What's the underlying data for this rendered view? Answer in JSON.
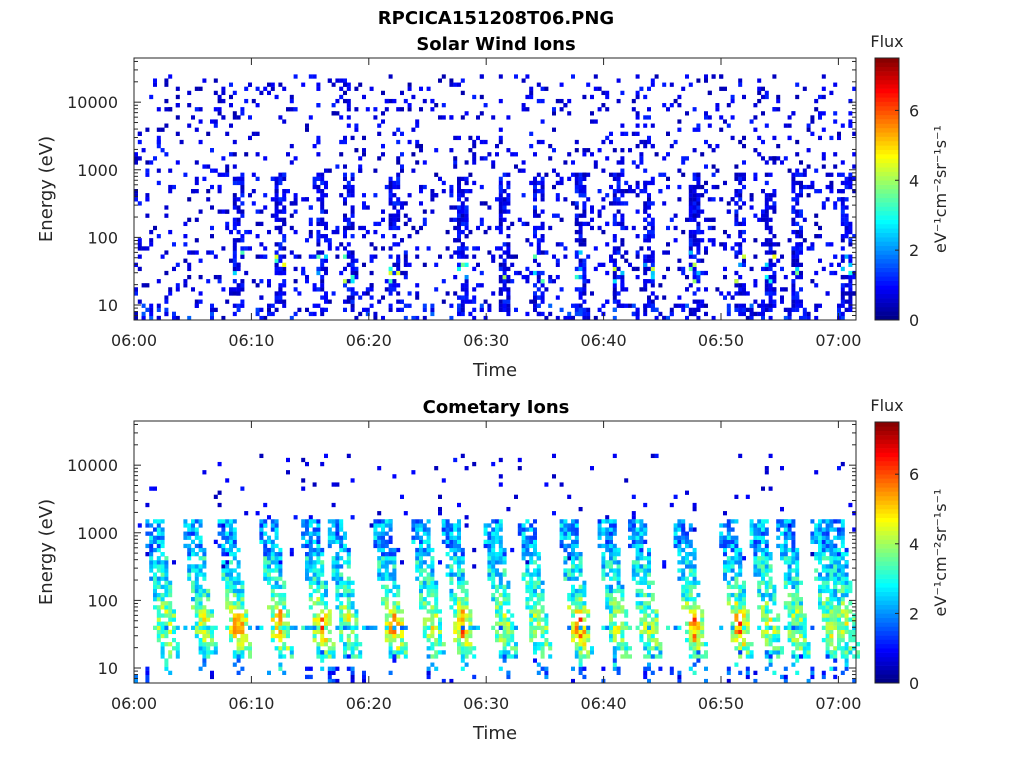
{
  "figure": {
    "title": "RPCICA151208T06.PNG"
  },
  "colormap": {
    "name": "jet",
    "stops": [
      "#00008f",
      "#0000ff",
      "#00ffff",
      "#ffff00",
      "#ff0000",
      "#800000"
    ]
  },
  "chart_data": [
    {
      "type": "heatmap",
      "title": "Solar Wind Ions",
      "xlabel": "Time",
      "ylabel": "Energy (eV)",
      "x_ticks": [
        "06:00",
        "06:10",
        "06:20",
        "06:30",
        "06:40",
        "06:50",
        "07:00"
      ],
      "x_range_minutes": [
        0,
        61.5
      ],
      "y_scale": "log",
      "y_ticks": [
        "10",
        "100",
        "1000",
        "10000"
      ],
      "y_range": [
        6,
        45000
      ],
      "colorbar": {
        "label": "Flux",
        "unit_label": "eV⁻¹cm⁻²sr⁻¹s⁻¹",
        "ticks": [
          "0",
          "2",
          "4",
          "6"
        ],
        "range": [
          0,
          7.5
        ]
      },
      "events_minutes": [
        8.8,
        12.2,
        15.7,
        18.1,
        22.0,
        27.8,
        31.4,
        34.3,
        37.8,
        41.0,
        43.7,
        47.6,
        51.5,
        54.0,
        56.4,
        60.5
      ],
      "description_level": "sparse low-flux scatter (0-2) across 6 eV - 30 keV with dark-blue vertical streaks at events"
    },
    {
      "type": "heatmap",
      "title": "Cometary Ions",
      "xlabel": "Time",
      "ylabel": "Energy (eV)",
      "x_ticks": [
        "06:00",
        "06:10",
        "06:20",
        "06:30",
        "06:40",
        "06:50",
        "07:00"
      ],
      "x_range_minutes": [
        0,
        61.5
      ],
      "y_scale": "log",
      "y_ticks": [
        "10",
        "100",
        "1000",
        "10000"
      ],
      "y_range": [
        6,
        45000
      ],
      "colorbar": {
        "label": "Flux",
        "unit_label": "eV⁻¹cm⁻²sr⁻¹s⁻¹",
        "ticks": [
          "0",
          "2",
          "4",
          "6"
        ],
        "range": [
          0,
          7.5
        ]
      },
      "events_minutes": [
        2.6,
        5.9,
        8.8,
        12.2,
        15.7,
        18.1,
        22.0,
        25.1,
        27.8,
        31.4,
        34.3,
        37.8,
        41.0,
        43.7,
        47.6,
        51.5,
        54.0,
        56.4,
        59.3,
        60.5
      ],
      "peak_energy_eV": 40,
      "peak_flux": 6.2,
      "description_level": "periodic dispersed structures from ~20 eV to ~1 keV, peak flux ~6 near 40 eV"
    }
  ]
}
